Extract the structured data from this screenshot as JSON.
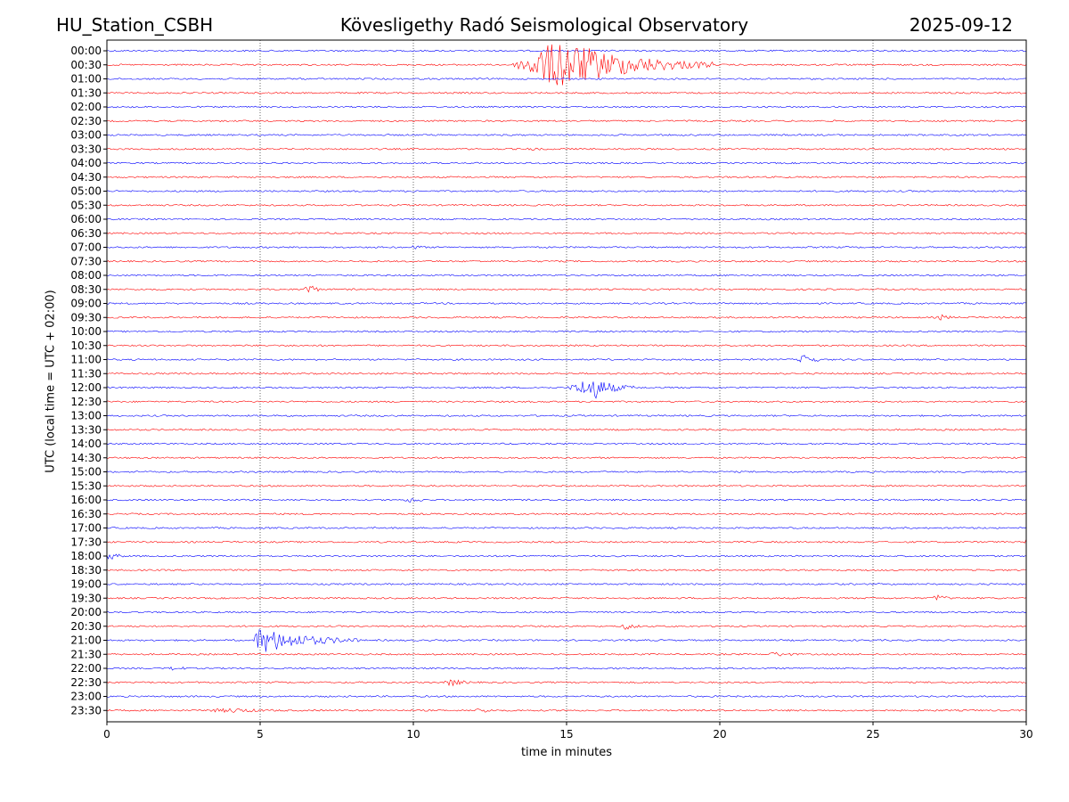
{
  "header": {
    "station": "HU_Station_CSBH",
    "observatory": "Kövesligethy Radó Seismological Observatory",
    "date": "2025-09-12"
  },
  "chart_data": {
    "type": "line",
    "title": "Kövesligethy Radó Seismological Observatory",
    "xlabel": "time in minutes",
    "ylabel": "UTC (local time = UTC + 02:00)",
    "xlim": [
      0,
      30
    ],
    "xticks": [
      0,
      5,
      10,
      15,
      20,
      25,
      30
    ],
    "x_gridlines": [
      5,
      10,
      15,
      20,
      25
    ],
    "grid": "vertical dotted",
    "series_colors": [
      "#0000ff",
      "#ff0000"
    ],
    "rows": [
      "00:00",
      "00:30",
      "01:00",
      "01:30",
      "02:00",
      "02:30",
      "03:00",
      "03:30",
      "04:00",
      "04:30",
      "05:00",
      "05:30",
      "06:00",
      "06:30",
      "07:00",
      "07:30",
      "08:00",
      "08:30",
      "09:00",
      "09:30",
      "10:00",
      "10:30",
      "11:00",
      "11:30",
      "12:00",
      "12:30",
      "13:00",
      "13:30",
      "14:00",
      "14:30",
      "15:00",
      "15:30",
      "16:00",
      "16:30",
      "17:00",
      "17:30",
      "18:00",
      "18:30",
      "19:00",
      "19:30",
      "20:00",
      "20:30",
      "21:00",
      "21:30",
      "22:00",
      "22:30",
      "23:00",
      "23:30"
    ],
    "events": [
      {
        "row": "00:30",
        "start": 13.2,
        "peak": 14.8,
        "end": 19.8,
        "amplitude": 1.8
      },
      {
        "row": "03:30",
        "start": 13.7,
        "peak": 13.9,
        "end": 14.2,
        "amplitude": 0.1
      },
      {
        "row": "07:00",
        "start": 9.9,
        "peak": 10.1,
        "end": 10.4,
        "amplitude": 0.15
      },
      {
        "row": "08:30",
        "start": 6.4,
        "peak": 6.6,
        "end": 7.0,
        "amplitude": 0.45
      },
      {
        "row": "09:30",
        "start": 27.1,
        "peak": 27.3,
        "end": 27.6,
        "amplitude": 0.25
      },
      {
        "row": "11:00",
        "start": 22.5,
        "peak": 22.9,
        "end": 23.3,
        "amplitude": 0.45
      },
      {
        "row": "12:00",
        "start": 15.0,
        "peak": 15.9,
        "end": 17.2,
        "amplitude": 0.8
      },
      {
        "row": "16:00",
        "start": 9.7,
        "peak": 10.0,
        "end": 10.4,
        "amplitude": 0.2
      },
      {
        "row": "17:30",
        "start": 29.9,
        "peak": 30.0,
        "end": 30.0,
        "amplitude": 0.2
      },
      {
        "row": "18:00",
        "start": 0.0,
        "peak": 0.1,
        "end": 0.6,
        "amplitude": 0.35
      },
      {
        "row": "19:30",
        "start": 26.9,
        "peak": 27.1,
        "end": 27.6,
        "amplitude": 0.25
      },
      {
        "row": "20:30",
        "start": 16.8,
        "peak": 17.0,
        "end": 17.4,
        "amplitude": 0.3
      },
      {
        "row": "21:00",
        "start": 4.8,
        "peak": 4.9,
        "end": 8.2,
        "amplitude": 1.0
      },
      {
        "row": "21:30",
        "start": 21.6,
        "peak": 21.8,
        "end": 22.6,
        "amplitude": 0.15
      },
      {
        "row": "22:00",
        "start": 2.0,
        "peak": 2.2,
        "end": 2.7,
        "amplitude": 0.15
      },
      {
        "row": "22:30",
        "start": 11.0,
        "peak": 11.2,
        "end": 12.0,
        "amplitude": 0.25
      },
      {
        "row": "23:30",
        "start": 3.0,
        "peak": 4.2,
        "end": 5.8,
        "amplitude": 0.12
      },
      {
        "row": "23:30",
        "start": 12.0,
        "peak": 12.3,
        "end": 12.6,
        "amplitude": 0.2
      }
    ]
  }
}
